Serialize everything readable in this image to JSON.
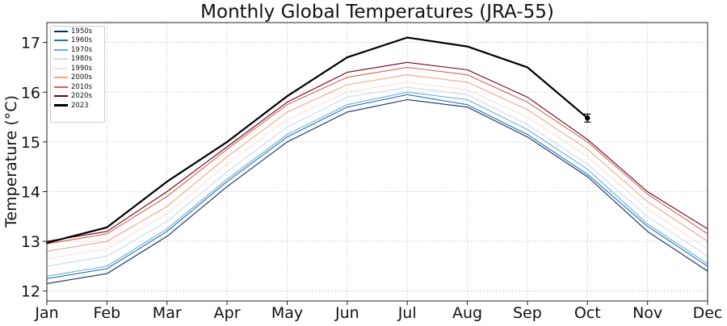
{
  "chart_data": {
    "type": "line",
    "title": "Monthly Global Temperatures (JRA-55)",
    "xlabel": "",
    "ylabel": "Temperature (°C)",
    "categories": [
      "Jan",
      "Feb",
      "Mar",
      "Apr",
      "May",
      "Jun",
      "Jul",
      "Aug",
      "Sep",
      "Oct",
      "Nov",
      "Dec"
    ],
    "ylim": [
      11.8,
      17.4
    ],
    "yticks": [
      12,
      13,
      14,
      15,
      16,
      17
    ],
    "grid": true,
    "legend_position": "top-left",
    "series": [
      {
        "name": "1950s",
        "color": "#08306b",
        "values": [
          12.15,
          12.35,
          13.1,
          14.1,
          15.0,
          15.6,
          15.85,
          15.7,
          15.1,
          14.3,
          13.2,
          12.4
        ]
      },
      {
        "name": "1960s",
        "color": "#2171b5",
        "values": [
          12.25,
          12.45,
          13.2,
          14.2,
          15.1,
          15.7,
          15.95,
          15.75,
          15.15,
          14.35,
          13.3,
          12.5
        ]
      },
      {
        "name": "1970s",
        "color": "#6baed6",
        "values": [
          12.3,
          12.5,
          13.25,
          14.25,
          15.15,
          15.75,
          16.0,
          15.85,
          15.25,
          14.45,
          13.35,
          12.55
        ]
      },
      {
        "name": "1980s",
        "color": "#c6dbef",
        "values": [
          12.5,
          12.7,
          13.4,
          14.4,
          15.3,
          15.9,
          16.1,
          15.95,
          15.35,
          14.55,
          13.5,
          12.7
        ]
      },
      {
        "name": "1990s",
        "color": "#fbe0d3",
        "values": [
          12.65,
          12.85,
          13.55,
          14.55,
          15.45,
          16.0,
          16.2,
          16.05,
          15.5,
          14.7,
          13.65,
          12.85
        ]
      },
      {
        "name": "2000s",
        "color": "#f4a582",
        "values": [
          12.8,
          13.0,
          13.7,
          14.7,
          15.6,
          16.15,
          16.35,
          16.2,
          15.65,
          14.85,
          13.8,
          13.0
        ]
      },
      {
        "name": "2010s",
        "color": "#d6604d",
        "values": [
          12.95,
          13.15,
          13.9,
          14.85,
          15.75,
          16.3,
          16.5,
          16.35,
          15.8,
          15.0,
          13.95,
          13.15
        ]
      },
      {
        "name": "2020s",
        "color": "#67001f",
        "values": [
          13.0,
          13.2,
          14.0,
          14.9,
          15.8,
          16.4,
          16.6,
          16.45,
          15.9,
          15.05,
          14.0,
          13.25
        ]
      },
      {
        "name": "2023",
        "color": "#000000",
        "values": [
          12.97,
          13.28,
          14.2,
          15.0,
          15.92,
          16.7,
          17.1,
          16.92,
          16.5,
          15.48,
          null,
          null
        ],
        "error_bar": {
          "month": "Oct",
          "value": 15.48,
          "error": 0.08
        }
      }
    ]
  }
}
